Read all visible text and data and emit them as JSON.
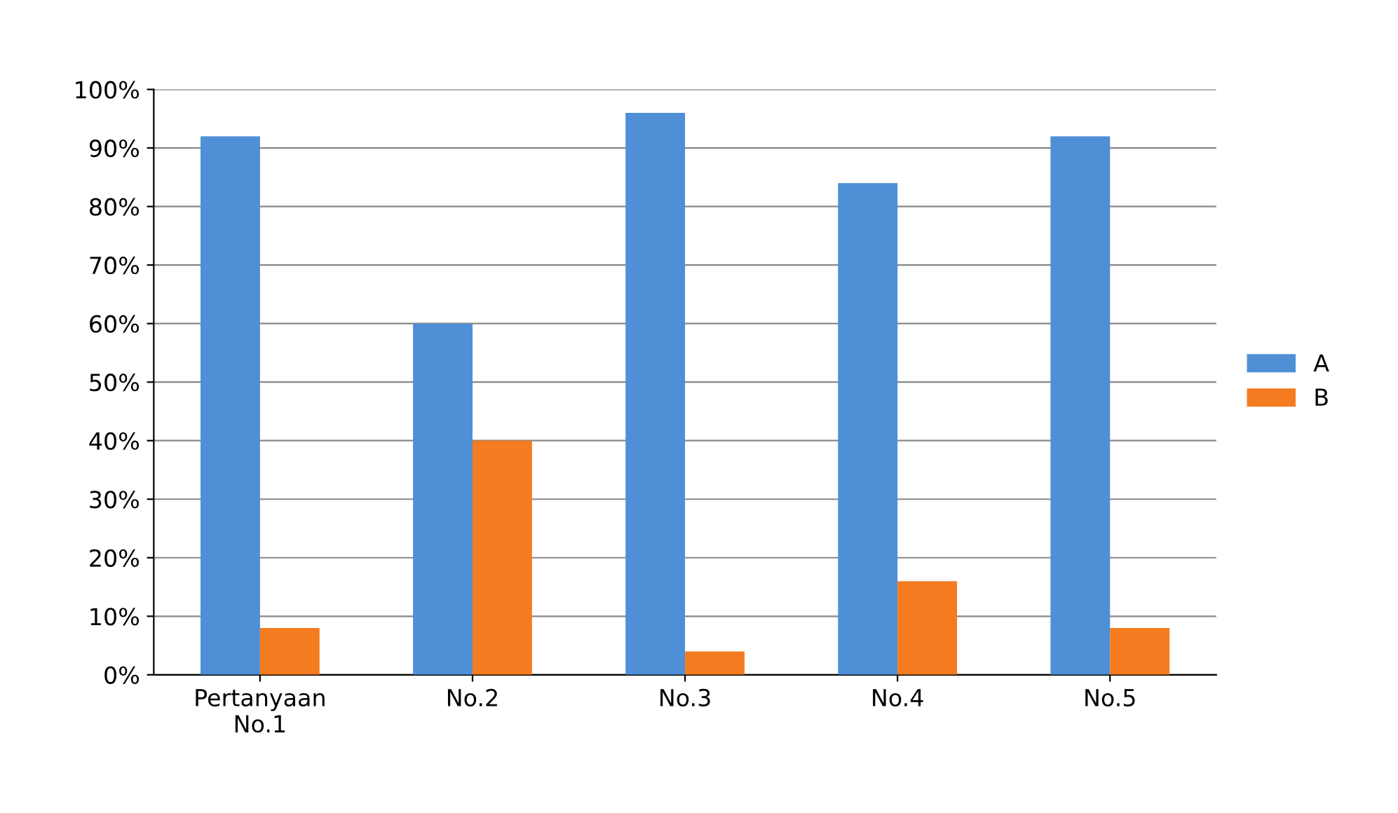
{
  "chart_data": {
    "type": "bar",
    "categories": [
      "Pertanyaan No.1",
      "No.2",
      "No.3",
      "No.4",
      "No.5"
    ],
    "series": [
      {
        "name": "A",
        "color": "#4f8fd6",
        "values": [
          92,
          60,
          96,
          84,
          92
        ]
      },
      {
        "name": "B",
        "color": "#f47b20",
        "values": [
          8,
          40,
          4,
          16,
          8
        ]
      }
    ],
    "ylim": [
      0,
      100
    ],
    "yticks": [
      {
        "value": 0,
        "label": "0%"
      },
      {
        "value": 10,
        "label": "10%"
      },
      {
        "value": 20,
        "label": "20%"
      },
      {
        "value": 30,
        "label": "30%"
      },
      {
        "value": 40,
        "label": "40%"
      },
      {
        "value": 50,
        "label": "50%"
      },
      {
        "value": 60,
        "label": "60%"
      },
      {
        "value": 70,
        "label": "70%"
      },
      {
        "value": 80,
        "label": "80%"
      },
      {
        "value": 90,
        "label": "90%"
      },
      {
        "value": 100,
        "label": "100%"
      }
    ],
    "grid": "y",
    "legend": "right"
  }
}
